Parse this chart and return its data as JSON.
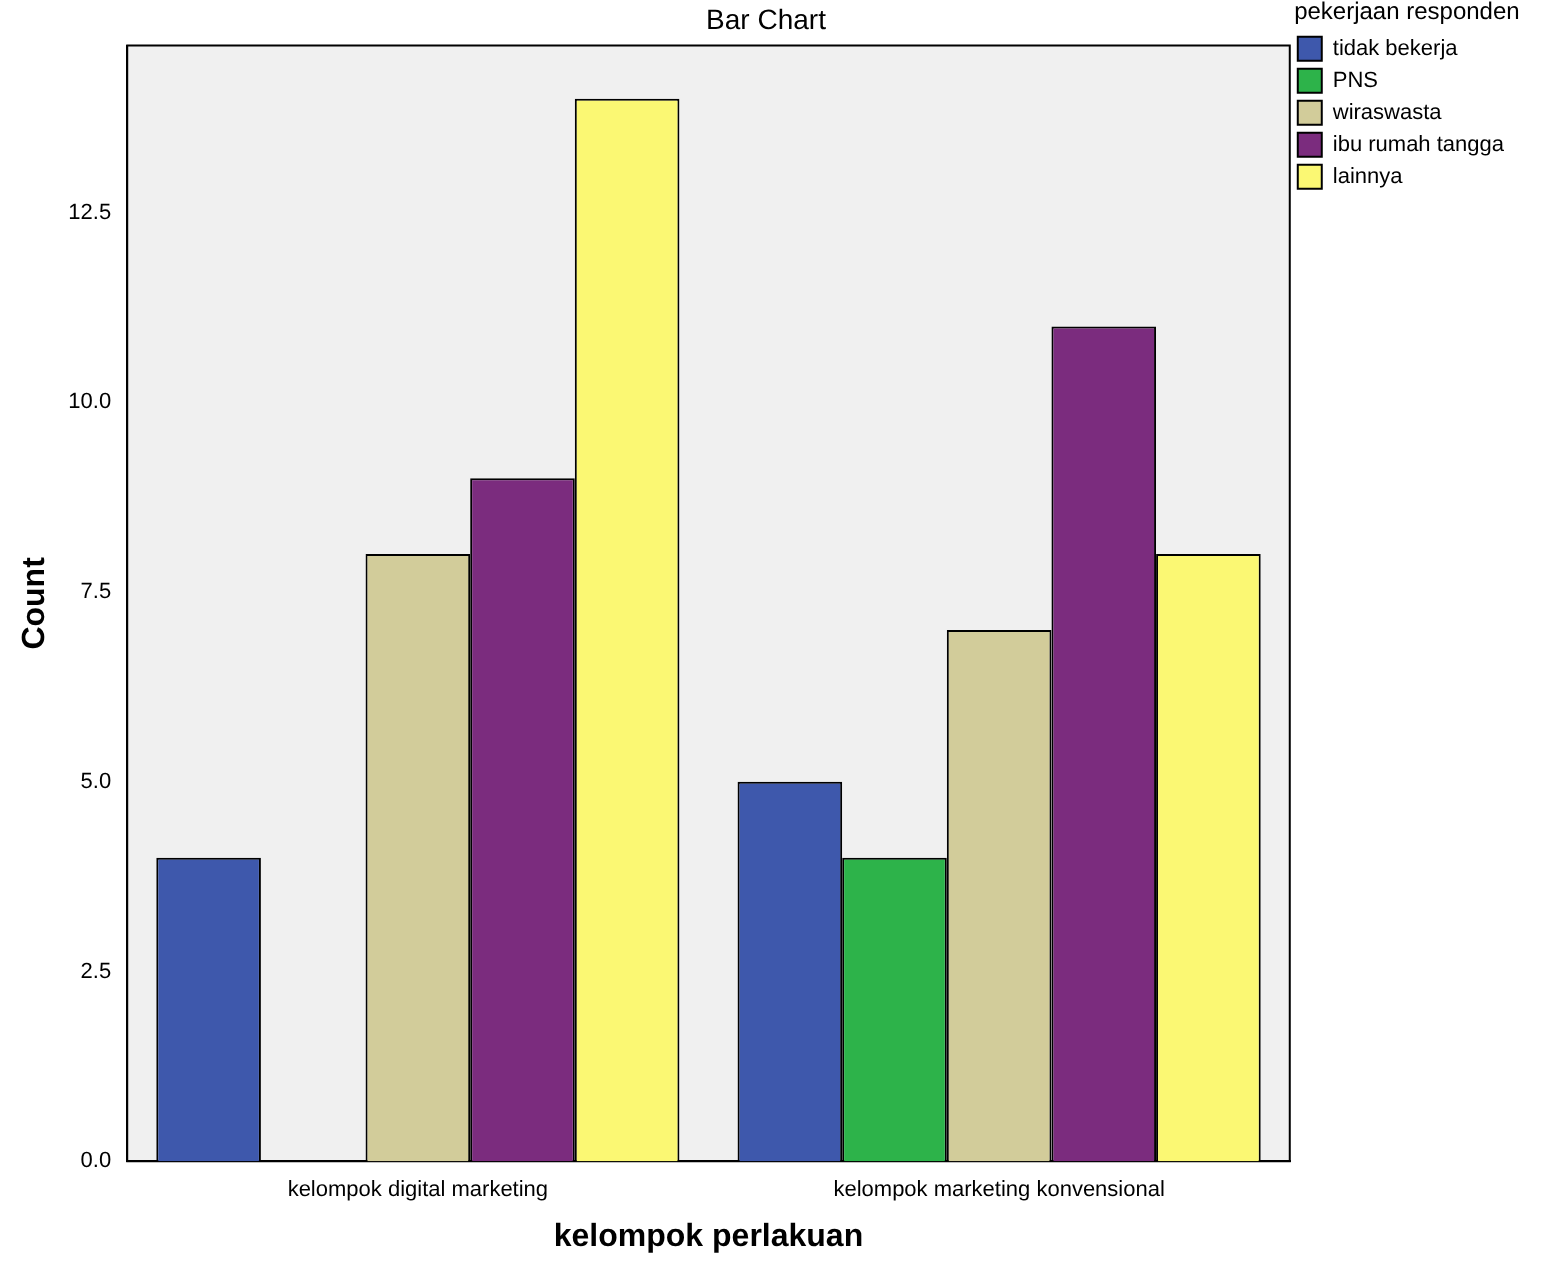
{
  "chart_data": {
    "type": "bar",
    "title": "Bar Chart",
    "xlabel": "kelompok perlakuan",
    "ylabel": "Count",
    "legend_title": "pekerjaan responden",
    "categories": [
      "kelompok digital marketing",
      "kelompok marketing konvensional"
    ],
    "series": [
      {
        "name": "tidak bekerja",
        "color": "#3e58ac",
        "values": [
          4,
          5
        ]
      },
      {
        "name": "PNS",
        "color": "#2db34a",
        "values": [
          0,
          4
        ]
      },
      {
        "name": "wiraswasta",
        "color": "#d2cc9a",
        "values": [
          8,
          7
        ]
      },
      {
        "name": "ibu rumah tangga",
        "color": "#7b2c7e",
        "values": [
          9,
          11
        ]
      },
      {
        "name": "lainnya",
        "color": "#fbf873",
        "values": [
          14,
          8
        ]
      }
    ],
    "ylim": [
      0,
      14.7
    ],
    "yticks": [
      {
        "value": 0,
        "label": "0.0"
      },
      {
        "value": 2.5,
        "label": "2.5"
      },
      {
        "value": 5,
        "label": "5.0"
      },
      {
        "value": 7.5,
        "label": "7.5"
      },
      {
        "value": 10,
        "label": "10.0"
      },
      {
        "value": 12.5,
        "label": "12.5"
      }
    ],
    "grid": false,
    "legend": "top right"
  }
}
